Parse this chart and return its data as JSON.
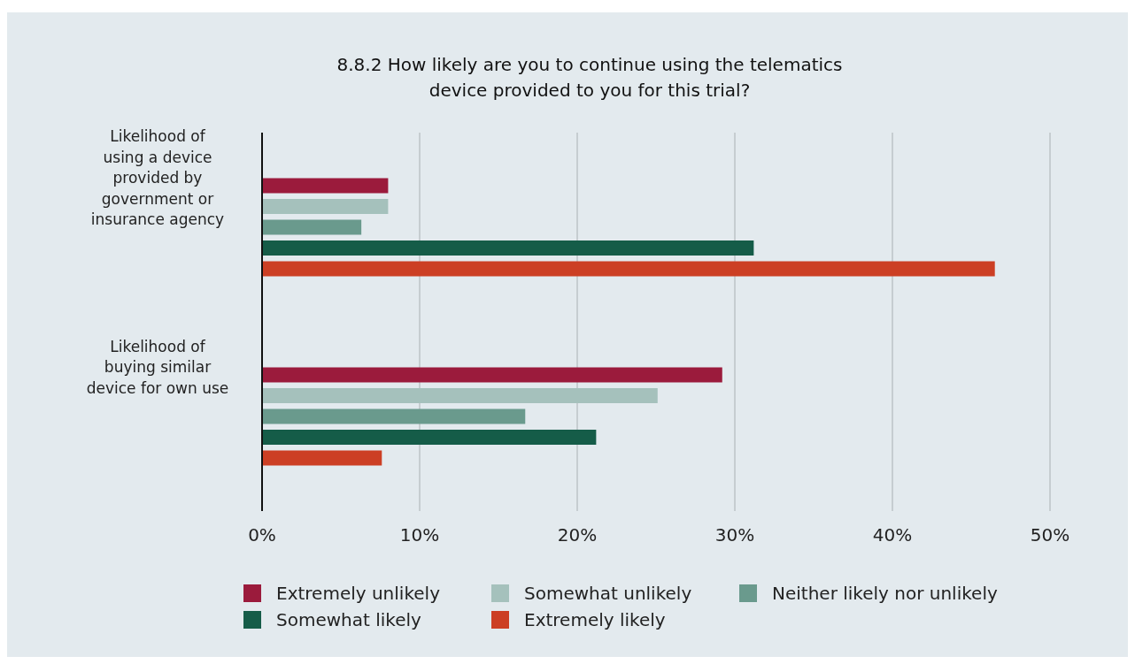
{
  "chart_data": {
    "type": "bar",
    "orientation": "horizontal",
    "title": "8.8.2 How likely are you to continue using the telematics device provided to you for this trial?",
    "categories": [
      "Likelihood of using a device provided by government or insurance agency",
      "Likelihood of buying similar device for own use"
    ],
    "series": [
      {
        "name": "Extremely unlikely",
        "color": "#9b1b3c",
        "values": [
          8.0,
          29.2
        ]
      },
      {
        "name": "Somewhat unlikely",
        "color": "#a5c1bc",
        "values": [
          8.0,
          25.1
        ]
      },
      {
        "name": "Neither likely nor unlikely",
        "color": "#6a9a8d",
        "values": [
          6.3,
          16.7
        ]
      },
      {
        "name": "Somewhat likely",
        "color": "#155c48",
        "values": [
          31.2,
          21.2
        ]
      },
      {
        "name": "Extremely likely",
        "color": "#cc3f24",
        "values": [
          46.5,
          7.6
        ]
      }
    ],
    "xlim": [
      0,
      50
    ],
    "xticks": [
      {
        "value": 0,
        "label": "0%"
      },
      {
        "value": 10,
        "label": "10%"
      },
      {
        "value": 20,
        "label": "20%"
      },
      {
        "value": 30,
        "label": "30%"
      },
      {
        "value": 40,
        "label": "40%"
      },
      {
        "value": 50,
        "label": "50%"
      }
    ],
    "grid": "x",
    "legend": "bottom"
  }
}
